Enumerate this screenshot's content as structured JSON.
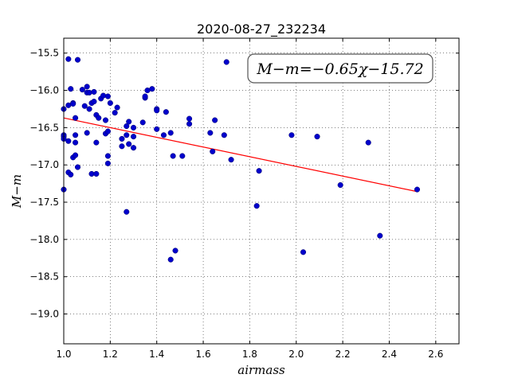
{
  "chart_data": {
    "type": "scatter",
    "title": "2020-08-27_232234",
    "xlabel": "airmass",
    "ylabel": "M−m",
    "xlim": [
      1.0,
      2.7
    ],
    "ylim": [
      -19.4,
      -15.3
    ],
    "xticks": [
      1.0,
      1.2,
      1.4,
      1.6,
      1.8,
      2.0,
      2.2,
      2.4,
      2.6
    ],
    "yticks": [
      -15.5,
      -16.0,
      -16.5,
      -17.0,
      -17.5,
      -18.0,
      -18.5,
      -19.0
    ],
    "xtick_labels": [
      "1.0",
      "1.2",
      "1.4",
      "1.6",
      "1.8",
      "2.0",
      "2.2",
      "2.4",
      "2.6"
    ],
    "ytick_labels": [
      "−15.5",
      "−16.0",
      "−16.5",
      "−17.0",
      "−17.5",
      "−18.0",
      "−18.5",
      "−19.0"
    ],
    "grid": true,
    "annotation": "M−m=−0.65χ−15.72",
    "fit": {
      "slope": -0.65,
      "intercept": -15.72,
      "x_range": [
        1.0,
        2.52
      ],
      "color": "#ff0000"
    },
    "point_color": "#0000cc",
    "points": [
      [
        1.0,
        -16.25
      ],
      [
        1.0,
        -16.6
      ],
      [
        1.0,
        -16.62
      ],
      [
        1.0,
        -16.65
      ],
      [
        1.0,
        -17.33
      ],
      [
        1.02,
        -16.2
      ],
      [
        1.02,
        -16.68
      ],
      [
        1.02,
        -17.1
      ],
      [
        1.02,
        -15.58
      ],
      [
        1.03,
        -15.98
      ],
      [
        1.03,
        -17.13
      ],
      [
        1.04,
        -16.17
      ],
      [
        1.04,
        -16.18
      ],
      [
        1.04,
        -16.9
      ],
      [
        1.05,
        -16.37
      ],
      [
        1.05,
        -16.6
      ],
      [
        1.05,
        -16.7
      ],
      [
        1.05,
        -16.87
      ],
      [
        1.06,
        -17.03
      ],
      [
        1.06,
        -15.59
      ],
      [
        1.08,
        -15.99
      ],
      [
        1.09,
        -16.21
      ],
      [
        1.1,
        -16.03
      ],
      [
        1.1,
        -15.95
      ],
      [
        1.1,
        -16.57
      ],
      [
        1.11,
        -16.25
      ],
      [
        1.11,
        -16.03
      ],
      [
        1.12,
        -16.17
      ],
      [
        1.12,
        -17.12
      ],
      [
        1.13,
        -16.02
      ],
      [
        1.13,
        -16.15
      ],
      [
        1.14,
        -16.33
      ],
      [
        1.14,
        -16.7
      ],
      [
        1.14,
        -17.12
      ],
      [
        1.15,
        -16.37
      ],
      [
        1.16,
        -16.11
      ],
      [
        1.17,
        -16.07
      ],
      [
        1.18,
        -16.4
      ],
      [
        1.18,
        -16.58
      ],
      [
        1.19,
        -16.08
      ],
      [
        1.19,
        -16.55
      ],
      [
        1.19,
        -16.88
      ],
      [
        1.19,
        -16.98
      ],
      [
        1.2,
        -16.17
      ],
      [
        1.22,
        -16.3
      ],
      [
        1.23,
        -16.23
      ],
      [
        1.25,
        -16.65
      ],
      [
        1.25,
        -16.75
      ],
      [
        1.27,
        -16.48
      ],
      [
        1.27,
        -16.6
      ],
      [
        1.27,
        -17.63
      ],
      [
        1.28,
        -16.42
      ],
      [
        1.28,
        -16.72
      ],
      [
        1.3,
        -16.5
      ],
      [
        1.3,
        -16.62
      ],
      [
        1.3,
        -16.77
      ],
      [
        1.34,
        -16.43
      ],
      [
        1.35,
        -16.1
      ],
      [
        1.35,
        -16.08
      ],
      [
        1.36,
        -16.0
      ],
      [
        1.38,
        -15.98
      ],
      [
        1.4,
        -16.25
      ],
      [
        1.4,
        -16.27
      ],
      [
        1.4,
        -16.52
      ],
      [
        1.43,
        -16.6
      ],
      [
        1.44,
        -16.29
      ],
      [
        1.46,
        -16.57
      ],
      [
        1.46,
        -18.27
      ],
      [
        1.47,
        -16.88
      ],
      [
        1.48,
        -18.15
      ],
      [
        1.51,
        -16.88
      ],
      [
        1.54,
        -16.38
      ],
      [
        1.54,
        -16.45
      ],
      [
        1.63,
        -16.57
      ],
      [
        1.64,
        -16.82
      ],
      [
        1.65,
        -16.4
      ],
      [
        1.69,
        -16.6
      ],
      [
        1.7,
        -15.62
      ],
      [
        1.72,
        -16.93
      ],
      [
        1.83,
        -17.55
      ],
      [
        1.84,
        -17.08
      ],
      [
        1.98,
        -16.6
      ],
      [
        2.03,
        -18.17
      ],
      [
        2.09,
        -16.62
      ],
      [
        2.19,
        -17.27
      ],
      [
        2.31,
        -16.7
      ],
      [
        2.36,
        -17.95
      ],
      [
        2.52,
        -17.33
      ]
    ]
  }
}
